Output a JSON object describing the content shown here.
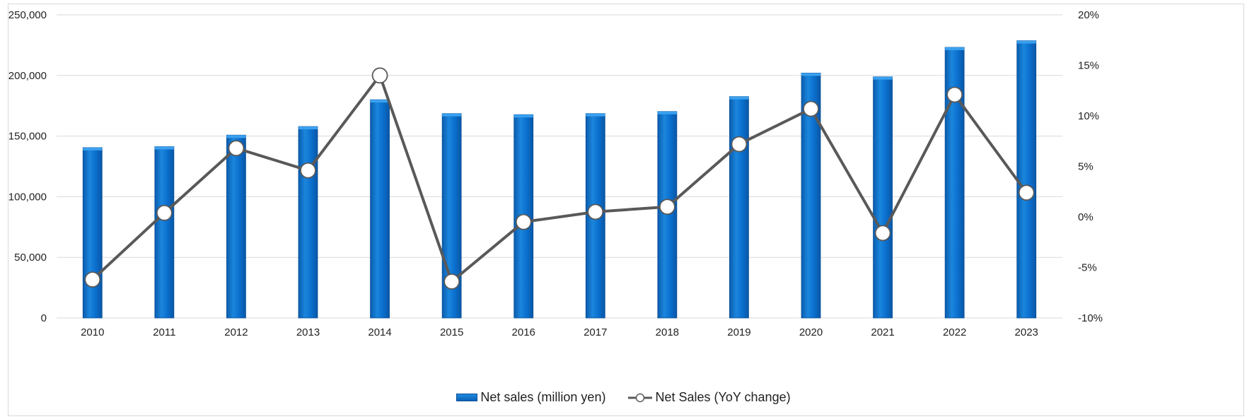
{
  "chart_data": {
    "type": "bar",
    "categories": [
      "2010",
      "2011",
      "2012",
      "2013",
      "2014",
      "2015",
      "2016",
      "2017",
      "2018",
      "2019",
      "2020",
      "2021",
      "2022",
      "2023"
    ],
    "series": [
      {
        "name": "Net sales (million yen)",
        "type": "bar",
        "axis": "left",
        "color": "#0a70d0",
        "values": [
          140500,
          141300,
          150800,
          157900,
          180000,
          168600,
          167700,
          168600,
          170300,
          182600,
          202000,
          198900,
          223200,
          228700
        ]
      },
      {
        "name": "Net Sales (YoY change)",
        "type": "line",
        "axis": "right",
        "color": "#595959",
        "unit": "%",
        "values": [
          -6.2,
          0.4,
          6.8,
          4.6,
          14.0,
          -6.4,
          -0.5,
          0.5,
          1.0,
          7.2,
          10.7,
          -1.6,
          12.1,
          2.4
        ]
      }
    ],
    "left_axis": {
      "ylim": [
        0,
        250000
      ],
      "ticks": [
        "0",
        "50,000",
        "100,000",
        "150,000",
        "200,000",
        "250,000"
      ]
    },
    "right_axis": {
      "ylim": [
        -10,
        20
      ],
      "ticks": [
        "-10%",
        "-5%",
        "0%",
        "5%",
        "10%",
        "15%",
        "20%"
      ]
    },
    "grid": true,
    "legend": "bottom-center"
  }
}
